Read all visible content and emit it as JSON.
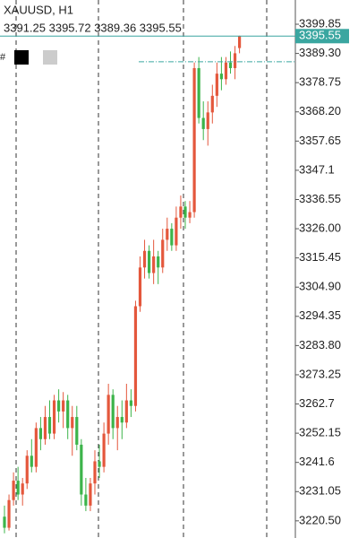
{
  "chart_data": {
    "type": "candlestick",
    "title": "XAUUSD, H1",
    "ohlc_text": "3391.25 3395.72 3389.36 3395.55",
    "toolbar_symbol": "#",
    "open": [
      3222,
      3218,
      3228,
      3235,
      3230,
      3234,
      3244,
      3240,
      3254,
      3250,
      3258,
      3252,
      3264,
      3260,
      3264,
      3254,
      3258,
      3248,
      3230,
      3226,
      3234,
      3242,
      3240,
      3252,
      3266,
      3254,
      3258,
      3256,
      3264,
      3262,
      3298,
      3312,
      3318,
      3310,
      3316,
      3312,
      3322,
      3326,
      3320,
      3330,
      3334,
      3330,
      3332,
      3384,
      3366,
      3362,
      3368,
      3374,
      3382,
      3380,
      3386,
      3384,
      3391.25
    ],
    "high": [
      3226,
      3230,
      3238,
      3240,
      3236,
      3246,
      3250,
      3256,
      3258,
      3262,
      3264,
      3266,
      3268,
      3267,
      3266,
      3262,
      3262,
      3250,
      3236,
      3236,
      3246,
      3248,
      3256,
      3270,
      3268,
      3262,
      3264,
      3270,
      3268,
      3300,
      3316,
      3322,
      3320,
      3322,
      3318,
      3326,
      3330,
      3328,
      3334,
      3338,
      3336,
      3336,
      3386,
      3388,
      3372,
      3372,
      3378,
      3386,
      3388,
      3388,
      3390,
      3392,
      3395.72
    ],
    "low": [
      3216,
      3217,
      3226,
      3228,
      3226,
      3232,
      3238,
      3238,
      3246,
      3248,
      3250,
      3250,
      3256,
      3254,
      3250,
      3244,
      3246,
      3226,
      3224,
      3224,
      3230,
      3236,
      3238,
      3248,
      3250,
      3246,
      3250,
      3254,
      3258,
      3260,
      3296,
      3308,
      3308,
      3306,
      3306,
      3310,
      3318,
      3318,
      3318,
      3326,
      3326,
      3328,
      3330,
      3364,
      3358,
      3356,
      3364,
      3370,
      3376,
      3378,
      3382,
      3380,
      3389.36
    ],
    "close": [
      3218,
      3228,
      3235,
      3230,
      3234,
      3244,
      3240,
      3254,
      3250,
      3258,
      3252,
      3264,
      3260,
      3264,
      3254,
      3258,
      3248,
      3230,
      3226,
      3234,
      3242,
      3240,
      3252,
      3266,
      3254,
      3258,
      3256,
      3264,
      3262,
      3298,
      3312,
      3318,
      3310,
      3316,
      3312,
      3322,
      3326,
      3320,
      3330,
      3334,
      3330,
      3332,
      3384,
      3366,
      3362,
      3368,
      3374,
      3382,
      3380,
      3386,
      3384,
      3389.36,
      3395.55
    ],
    "up_color": "#e4573c",
    "down_color": "#3cb44a",
    "last_price": 3395.55,
    "last_price_color": "#3aa6a0",
    "level_line": 3386.3,
    "ylim": [
      3214.3,
      3408.6
    ],
    "yticks": [
      3399.85,
      {
        "value": 3389.3,
        "label": "3389.30"
      },
      3378.75,
      {
        "value": 3368.2,
        "label": "3368.20"
      },
      3357.65,
      3347.1,
      3336.55,
      {
        "value": 3326,
        "label": "3326.00"
      },
      3315.45,
      {
        "value": 3304.9,
        "label": "3304.90"
      },
      3294.35,
      {
        "value": 3283.8,
        "label": "3283.80"
      },
      3273.25,
      3262.7,
      3252.15,
      3241.6,
      3231.05,
      {
        "value": 3220.5,
        "label": "3220.50"
      }
    ]
  }
}
